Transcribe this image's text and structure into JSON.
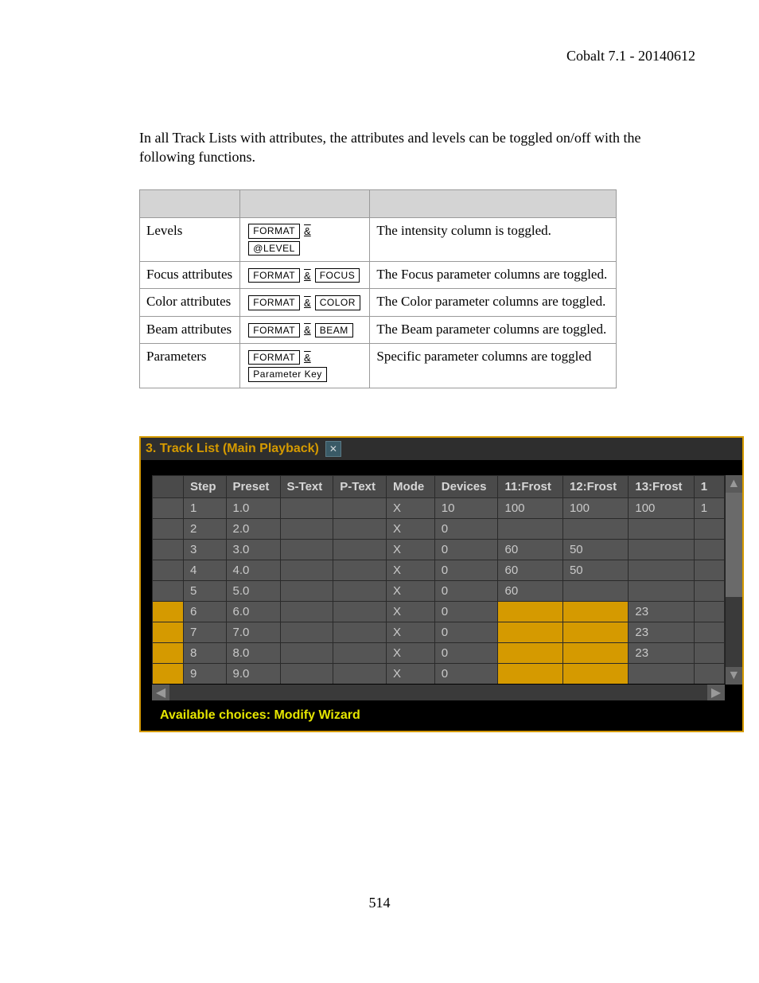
{
  "header": {
    "title": "Cobalt 7.1 - 20140612"
  },
  "intro": "In all Track Lists with attributes, the attributes and levels can be toggled on/off with the following functions.",
  "ref_table": {
    "col_count": 3,
    "rows": [
      {
        "label": "Levels",
        "keys": [
          "FORMAT",
          "&",
          "@LEVEL"
        ],
        "desc": "The intensity column is toggled."
      },
      {
        "label": "Focus attributes",
        "keys": [
          "FORMAT",
          "&",
          "FOCUS"
        ],
        "desc": "The Focus parameter columns are toggled."
      },
      {
        "label": "Color attributes",
        "keys": [
          "FORMAT",
          "&",
          "COLOR"
        ],
        "desc": "The Color parameter columns are toggled."
      },
      {
        "label": "Beam attributes",
        "keys": [
          "FORMAT",
          "&",
          "BEAM"
        ],
        "desc": "The Beam parameter columns are toggled."
      },
      {
        "label": "Parameters",
        "keys": [
          "FORMAT",
          "&",
          "Parameter Key"
        ],
        "desc": "Specific parameter columns are toggled"
      }
    ]
  },
  "screenshot": {
    "title": "3. Track List (Main Playback)",
    "footer": "Available choices: Modify Wizard",
    "columns": [
      "Step",
      "Preset",
      "S-Text",
      "P-Text",
      "Mode",
      "Devices",
      "11:Frost",
      "12:Frost",
      "13:Frost",
      "1"
    ],
    "gutter_highlight_rows": [
      5,
      6,
      7,
      8
    ],
    "cell_highlights": {
      "5": [
        6,
        7
      ],
      "6": [
        6,
        7
      ],
      "7": [
        6,
        7
      ],
      "8": [
        6,
        7
      ]
    },
    "colors": {
      "window_bg": "#000000",
      "border": "#d59a00",
      "title_text": "#d59a00",
      "header_bg": "#4a4a4a",
      "cell_bg": "#555555",
      "highlight": "#d59a00",
      "footer_text": "#e6e600",
      "grid_text": "#c9c9c9"
    },
    "rows": [
      {
        "step": "1",
        "preset": "1.0",
        "stext": "",
        "ptext": "",
        "mode": "X",
        "devices": "10",
        "f11": "100",
        "f12": "100",
        "f13": "100",
        "f14": "1"
      },
      {
        "step": "2",
        "preset": "2.0",
        "stext": "",
        "ptext": "",
        "mode": "X",
        "devices": "0",
        "f11": "",
        "f12": "",
        "f13": "",
        "f14": ""
      },
      {
        "step": "3",
        "preset": "3.0",
        "stext": "",
        "ptext": "",
        "mode": "X",
        "devices": "0",
        "f11": "60",
        "f12": "50",
        "f13": "",
        "f14": ""
      },
      {
        "step": "4",
        "preset": "4.0",
        "stext": "",
        "ptext": "",
        "mode": "X",
        "devices": "0",
        "f11": "60",
        "f12": "50",
        "f13": "",
        "f14": ""
      },
      {
        "step": "5",
        "preset": "5.0",
        "stext": "",
        "ptext": "",
        "mode": "X",
        "devices": "0",
        "f11": "60",
        "f12": "",
        "f13": "",
        "f14": ""
      },
      {
        "step": "6",
        "preset": "6.0",
        "stext": "",
        "ptext": "",
        "mode": "X",
        "devices": "0",
        "f11": "",
        "f12": "",
        "f13": "23",
        "f14": ""
      },
      {
        "step": "7",
        "preset": "7.0",
        "stext": "",
        "ptext": "",
        "mode": "X",
        "devices": "0",
        "f11": "",
        "f12": "",
        "f13": "23",
        "f14": ""
      },
      {
        "step": "8",
        "preset": "8.0",
        "stext": "",
        "ptext": "",
        "mode": "X",
        "devices": "0",
        "f11": "",
        "f12": "",
        "f13": "23",
        "f14": ""
      },
      {
        "step": "9",
        "preset": "9.0",
        "stext": "",
        "ptext": "",
        "mode": "X",
        "devices": "0",
        "f11": "",
        "f12": "",
        "f13": "",
        "f14": ""
      }
    ]
  },
  "page_number": "514"
}
